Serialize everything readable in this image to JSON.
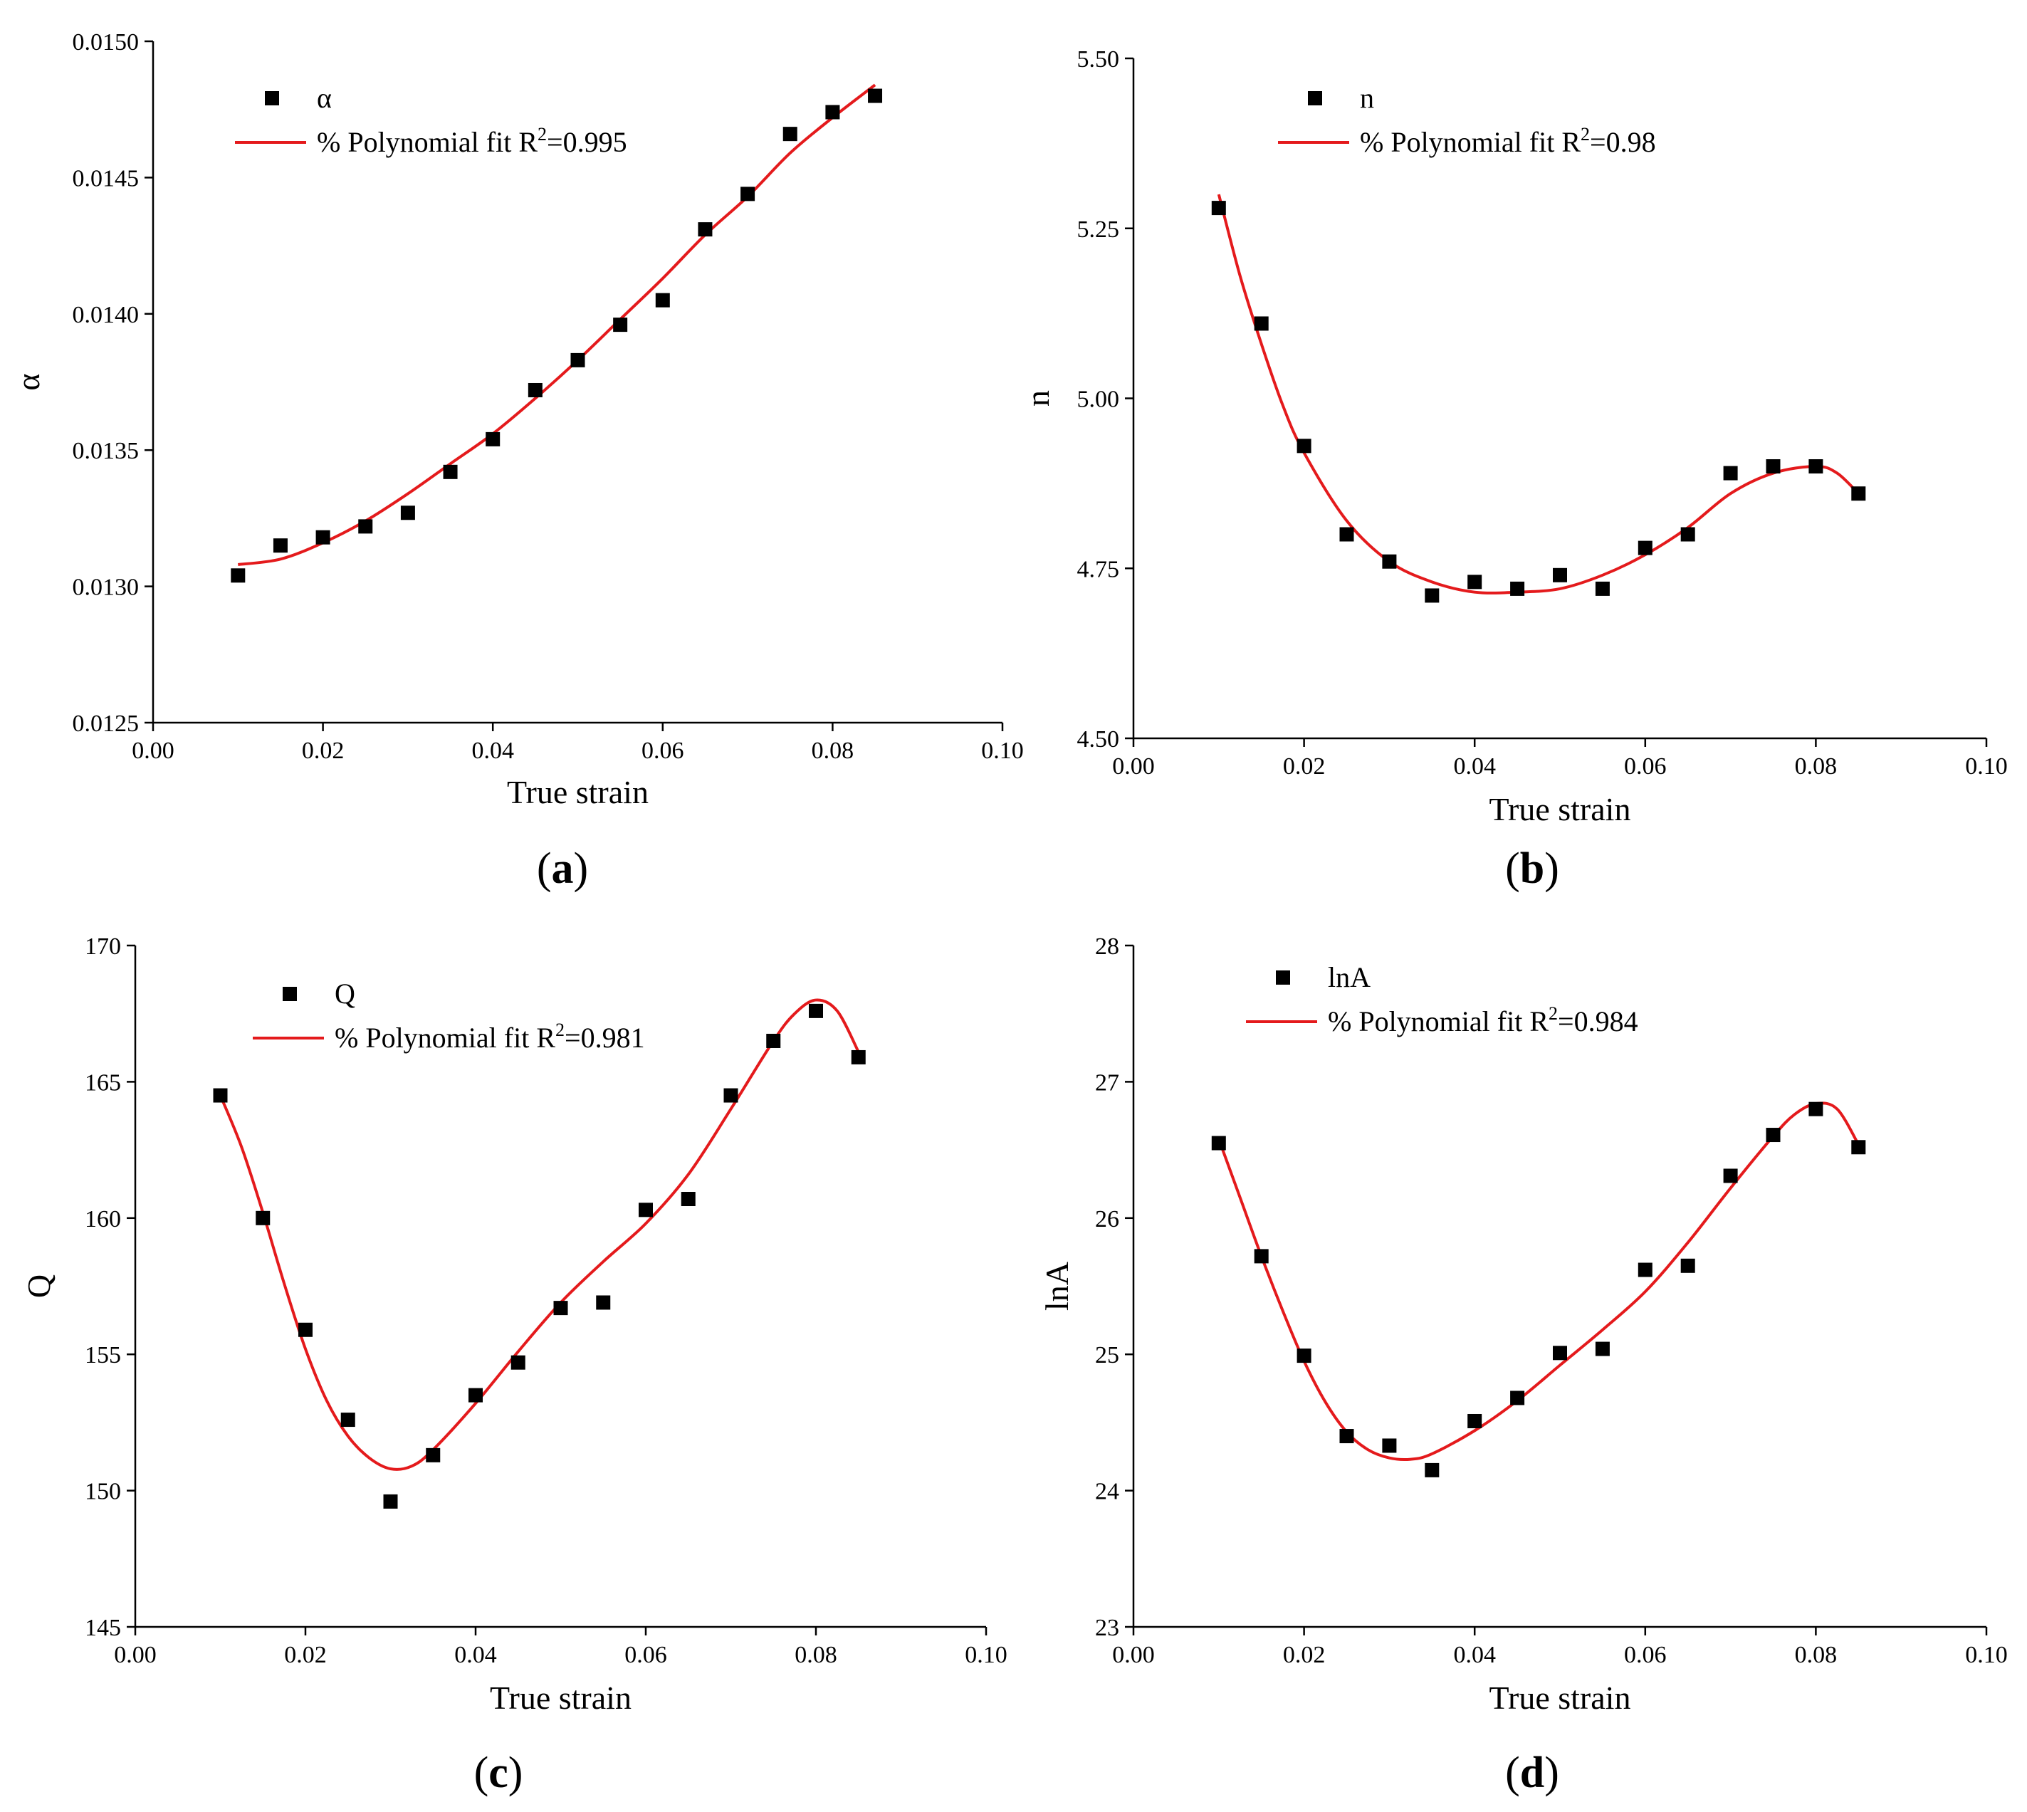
{
  "colors": {
    "marker": "#000000",
    "fit_line": "#e41a1c",
    "axis": "#000000",
    "background": "#ffffff"
  },
  "chart_data": [
    {
      "id": "a",
      "type": "scatter",
      "panel_label": "a",
      "xlabel": "True strain",
      "ylabel": "α",
      "xlim": [
        0,
        0.1
      ],
      "ylim": [
        0.0125,
        0.015
      ],
      "xticks": [
        "0.00",
        "0.02",
        "0.04",
        "0.06",
        "0.08",
        "0.10"
      ],
      "yticks": [
        "0.0125",
        "0.0130",
        "0.0135",
        "0.0140",
        "0.0145",
        "0.0150"
      ],
      "legend_position": "top-left",
      "series": [
        {
          "name": "α",
          "kind": "points",
          "x": [
            0.01,
            0.015,
            0.02,
            0.025,
            0.03,
            0.035,
            0.04,
            0.045,
            0.05,
            0.055,
            0.06,
            0.065,
            0.07,
            0.075,
            0.08,
            0.085
          ],
          "y": [
            0.01304,
            0.01315,
            0.01318,
            0.01322,
            0.01327,
            0.01342,
            0.01354,
            0.01372,
            0.01383,
            0.01396,
            0.01405,
            0.01431,
            0.01444,
            0.01466,
            0.01474,
            0.0148
          ]
        },
        {
          "name": "% Polynomial fit",
          "r2_prefix": "R",
          "r2_power": "2",
          "r2_value": "=0.995",
          "kind": "fit",
          "x": [
            0.01,
            0.015,
            0.02,
            0.025,
            0.03,
            0.035,
            0.04,
            0.045,
            0.05,
            0.055,
            0.06,
            0.065,
            0.07,
            0.075,
            0.08,
            0.085
          ],
          "y": [
            0.01308,
            0.0131,
            0.01316,
            0.01324,
            0.01334,
            0.01345,
            0.01356,
            0.01369,
            0.01383,
            0.01398,
            0.01413,
            0.01429,
            0.01443,
            0.01459,
            0.01472,
            0.01484
          ]
        }
      ]
    },
    {
      "id": "b",
      "type": "scatter",
      "panel_label": "b",
      "xlabel": "True strain",
      "ylabel": "n",
      "xlim": [
        0,
        0.1
      ],
      "ylim": [
        4.5,
        5.5
      ],
      "xticks": [
        "0.00",
        "0.02",
        "0.04",
        "0.06",
        "0.08",
        "0.10"
      ],
      "yticks": [
        "4.50",
        "4.75",
        "5.00",
        "5.25",
        "5.50"
      ],
      "legend_position": "top-center",
      "series": [
        {
          "name": "n",
          "kind": "points",
          "x": [
            0.01,
            0.015,
            0.02,
            0.025,
            0.03,
            0.035,
            0.04,
            0.045,
            0.05,
            0.055,
            0.06,
            0.065,
            0.07,
            0.075,
            0.08,
            0.085
          ],
          "y": [
            5.28,
            5.11,
            4.93,
            4.8,
            4.76,
            4.71,
            4.73,
            4.72,
            4.74,
            4.72,
            4.78,
            4.8,
            4.89,
            4.9,
            4.9,
            4.86
          ]
        },
        {
          "name": "% Polynomial fit",
          "r2_prefix": "R",
          "r2_power": "2",
          "r2_value": "=0.98",
          "kind": "fit",
          "x": [
            0.01,
            0.0125,
            0.015,
            0.0175,
            0.02,
            0.025,
            0.03,
            0.035,
            0.04,
            0.045,
            0.05,
            0.055,
            0.06,
            0.065,
            0.07,
            0.075,
            0.08,
            0.0825,
            0.085
          ],
          "y": [
            5.3,
            5.18,
            5.08,
            4.99,
            4.92,
            4.82,
            4.76,
            4.73,
            4.715,
            4.715,
            4.72,
            4.74,
            4.77,
            4.81,
            4.86,
            4.89,
            4.9,
            4.89,
            4.86
          ]
        }
      ]
    },
    {
      "id": "c",
      "type": "scatter",
      "panel_label": "c",
      "xlabel": "True strain",
      "ylabel": "Q",
      "xlim": [
        0,
        0.1
      ],
      "ylim": [
        145,
        170
      ],
      "xticks": [
        "0.00",
        "0.02",
        "0.04",
        "0.06",
        "0.08",
        "0.10"
      ],
      "yticks": [
        "145",
        "150",
        "155",
        "160",
        "165",
        "170"
      ],
      "legend_position": "top-left",
      "series": [
        {
          "name": "Q",
          "kind": "points",
          "x": [
            0.01,
            0.015,
            0.02,
            0.025,
            0.03,
            0.035,
            0.04,
            0.045,
            0.05,
            0.055,
            0.06,
            0.065,
            0.07,
            0.075,
            0.08,
            0.085
          ],
          "y": [
            164.5,
            160.0,
            155.9,
            152.6,
            149.6,
            151.3,
            153.5,
            154.7,
            156.7,
            156.9,
            160.3,
            160.7,
            164.5,
            166.5,
            167.6,
            165.9
          ]
        },
        {
          "name": "% Polynomial fit",
          "r2_prefix": "R",
          "r2_power": "2",
          "r2_value": "=0.981",
          "kind": "fit",
          "x": [
            0.01,
            0.0125,
            0.015,
            0.0175,
            0.02,
            0.0225,
            0.025,
            0.0275,
            0.03,
            0.0325,
            0.035,
            0.04,
            0.045,
            0.05,
            0.055,
            0.06,
            0.065,
            0.07,
            0.075,
            0.0775,
            0.08,
            0.0825,
            0.085
          ],
          "y": [
            164.5,
            162.6,
            160.2,
            157.6,
            155.2,
            153.3,
            152.0,
            151.2,
            150.8,
            150.9,
            151.5,
            153.2,
            155.1,
            156.9,
            158.4,
            159.8,
            161.6,
            164.0,
            166.5,
            167.5,
            168.0,
            167.6,
            166.1
          ]
        }
      ]
    },
    {
      "id": "d",
      "type": "scatter",
      "panel_label": "d",
      "xlabel": "True strain",
      "ylabel": "lnA",
      "xlim": [
        0,
        0.1
      ],
      "ylim": [
        23,
        28
      ],
      "xticks": [
        "0.00",
        "0.02",
        "0.04",
        "0.06",
        "0.08",
        "0.10"
      ],
      "yticks": [
        "23",
        "24",
        "25",
        "26",
        "27",
        "28"
      ],
      "legend_position": "top-center",
      "series": [
        {
          "name": "lnA",
          "kind": "points",
          "x": [
            0.01,
            0.015,
            0.02,
            0.025,
            0.03,
            0.035,
            0.04,
            0.045,
            0.05,
            0.055,
            0.06,
            0.065,
            0.07,
            0.075,
            0.08,
            0.085
          ],
          "y": [
            26.55,
            25.72,
            24.99,
            24.4,
            24.33,
            24.15,
            24.51,
            24.68,
            25.01,
            25.04,
            25.62,
            25.65,
            26.31,
            26.61,
            26.8,
            26.52
          ]
        },
        {
          "name": "% Polynomial fit",
          "r2_prefix": "R",
          "r2_power": "2",
          "r2_value": "=0.984",
          "kind": "fit",
          "x": [
            0.01,
            0.0125,
            0.015,
            0.0175,
            0.02,
            0.0225,
            0.025,
            0.0275,
            0.03,
            0.0325,
            0.035,
            0.04,
            0.045,
            0.05,
            0.055,
            0.06,
            0.065,
            0.07,
            0.075,
            0.0775,
            0.08,
            0.0825,
            0.085
          ],
          "y": [
            26.58,
            26.15,
            25.72,
            25.32,
            24.95,
            24.65,
            24.43,
            24.3,
            24.24,
            24.23,
            24.27,
            24.44,
            24.66,
            24.92,
            25.18,
            25.46,
            25.82,
            26.22,
            26.6,
            26.76,
            26.84,
            26.8,
            26.54
          ]
        }
      ]
    }
  ]
}
